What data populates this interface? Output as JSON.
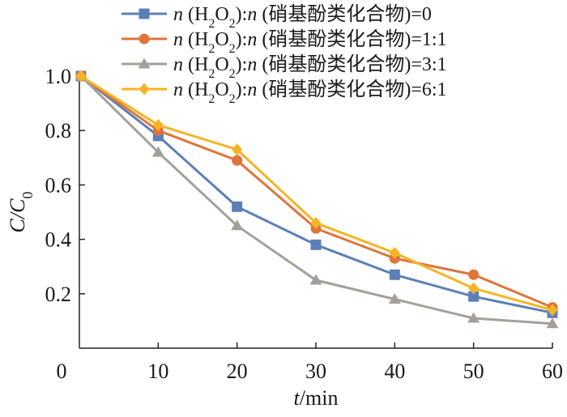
{
  "chart_data": {
    "type": "line",
    "x": [
      0,
      10,
      20,
      30,
      40,
      50,
      60
    ],
    "xlim": [
      0,
      60
    ],
    "ylim": [
      0,
      1.0
    ],
    "xticks": [
      "0",
      "10",
      "20",
      "30",
      "40",
      "50",
      "60"
    ],
    "yticks": [
      "0.2",
      "0.4",
      "0.6",
      "0.8",
      "1.0"
    ],
    "xlabel": {
      "var": "t",
      "unit": "/min"
    },
    "ylabel": {
      "var": "C/C",
      "sub": "0"
    },
    "grid": false,
    "legend_position": "top",
    "series": [
      {
        "name": "n (H2O2):n (硝基酚类化合物)=0",
        "legend": {
          "p1": "n",
          "p2": " (H",
          "s1": "2",
          "p3": "O",
          "s2": "2",
          "p4": "):",
          "p5": "n",
          "p6": " (硝基酚类化合物)=0"
        },
        "color": "#5b80b8",
        "marker": "square",
        "values": [
          1.0,
          0.78,
          0.52,
          0.38,
          0.27,
          0.19,
          0.13
        ]
      },
      {
        "name": "n (H2O2):n (硝基酚类化合物)=1:1",
        "legend": {
          "p1": "n",
          "p2": " (H",
          "s1": "2",
          "p3": "O",
          "s2": "2",
          "p4": "):",
          "p5": "n",
          "p6": " (硝基酚类化合物)=1:1"
        },
        "color": "#e0743a",
        "marker": "circle",
        "values": [
          1.0,
          0.8,
          0.69,
          0.44,
          0.33,
          0.27,
          0.15
        ]
      },
      {
        "name": "n (H2O2):n (硝基酚类化合物)=3:1",
        "legend": {
          "p1": "n",
          "p2": " (H",
          "s1": "2",
          "p3": "O",
          "s2": "2",
          "p4": "):",
          "p5": "n",
          "p6": " (硝基酚类化合物)=3:1"
        },
        "color": "#a59f99",
        "marker": "triangle",
        "values": [
          1.0,
          0.72,
          0.45,
          0.25,
          0.18,
          0.11,
          0.09
        ]
      },
      {
        "name": "n (H2O2):n (硝基酚类化合物)=6:1",
        "legend": {
          "p1": "n",
          "p2": " (H",
          "s1": "2",
          "p3": "O",
          "s2": "2",
          "p4": "):",
          "p5": "n",
          "p6": " (硝基酚类化合物)=6:1"
        },
        "color": "#f5b425",
        "marker": "diamond",
        "values": [
          1.0,
          0.82,
          0.73,
          0.46,
          0.35,
          0.22,
          0.14
        ]
      }
    ]
  }
}
